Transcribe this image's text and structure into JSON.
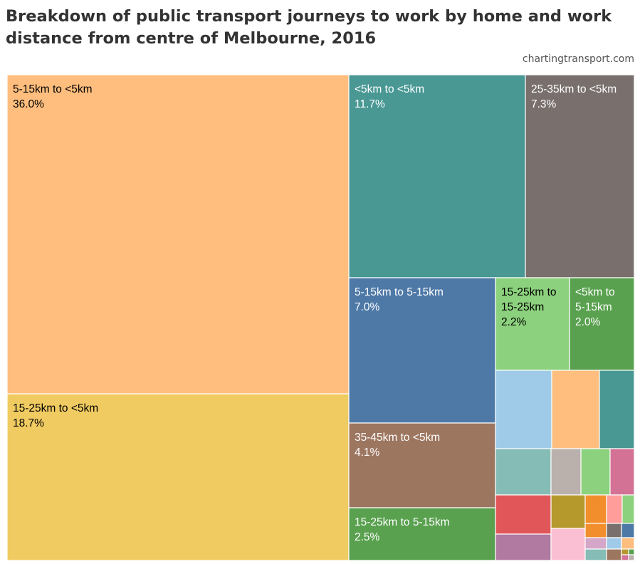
{
  "title": "Breakdown of public transport journeys to work by home and work distance from centre of Melbourne, 2016",
  "source": "chartingtransport.com",
  "chart_data": {
    "type": "treemap",
    "title": "Breakdown of public transport journeys to work by home and work distance from centre of Melbourne, 2016",
    "labeled_tiles": [
      {
        "name": "5-15km to <5km",
        "value_label": "36.0%",
        "value": 36.0,
        "color": "#FFBE7D",
        "text": "#000000"
      },
      {
        "name": "15-25km to <5km",
        "value_label": "18.7%",
        "value": 18.7,
        "color": "#F0CB61",
        "text": "#000000"
      },
      {
        "name": "<5km to <5km",
        "value_label": "11.7%",
        "value": 11.7,
        "color": "#499894",
        "text": "#ffffff"
      },
      {
        "name": "25-35km to <5km",
        "value_label": "7.3%",
        "value": 7.3,
        "color": "#79706E",
        "text": "#ffffff"
      },
      {
        "name": "5-15km to 5-15km",
        "value_label": "7.0%",
        "value": 7.0,
        "color": "#4E79A7",
        "text": "#ffffff"
      },
      {
        "name": "15-25km to 15-25km",
        "value_label": "2.2%",
        "value": 2.2,
        "color": "#8CD17D",
        "text": "#000000"
      },
      {
        "name": "<5km to 5-15km",
        "value_label": "2.0%",
        "value": 2.0,
        "color": "#59A14F",
        "text": "#ffffff"
      },
      {
        "name": "35-45km to <5km",
        "value_label": "4.1%",
        "value": 4.1,
        "color": "#9D7660",
        "text": "#ffffff"
      },
      {
        "name": "15-25km to 5-15km",
        "value_label": "2.5%",
        "value": 2.5,
        "color": "#59A14F",
        "text": "#ffffff"
      }
    ],
    "unlabeled_tile_colors": [
      "#A0CBE8",
      "#FFBE7D",
      "#499894",
      "#86BCB6",
      "#BAB0AC",
      "#8CD17D",
      "#D37295",
      "#E15759",
      "#B6992D",
      "#F28E2B",
      "#FF9D9A",
      "#8CD17D",
      "#B07AA1",
      "#FABFD2",
      "#F28E2B",
      "#79706E",
      "#4E79A7",
      "#D4A6C8",
      "#86BCB6",
      "#A0CBE8",
      "#FFBE7D",
      "#9D7660",
      "#B6992D",
      "#59A14F",
      "#D37295",
      "#BAB0AC"
    ]
  }
}
